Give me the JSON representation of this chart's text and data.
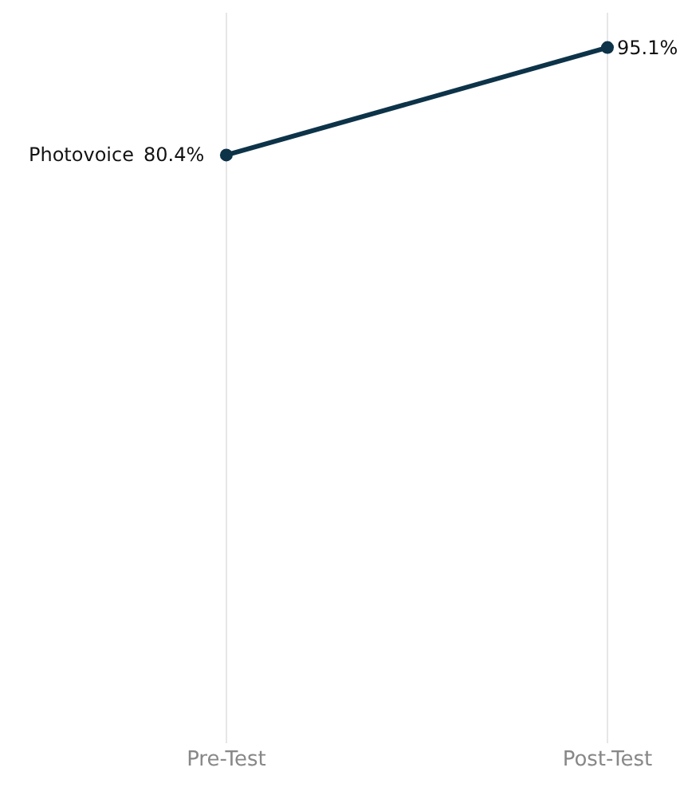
{
  "chart_data": {
    "type": "line",
    "categories": [
      "Pre-Test",
      "Post-Test"
    ],
    "series": [
      {
        "name": "Photovoice",
        "color": "#0d3349",
        "values": [
          80.4,
          95.1
        ],
        "value_labels": [
          "80.4%",
          "95.1%"
        ]
      }
    ],
    "tick_labels": "x",
    "grid": "x",
    "marker": "circle",
    "line_style": "solid"
  }
}
